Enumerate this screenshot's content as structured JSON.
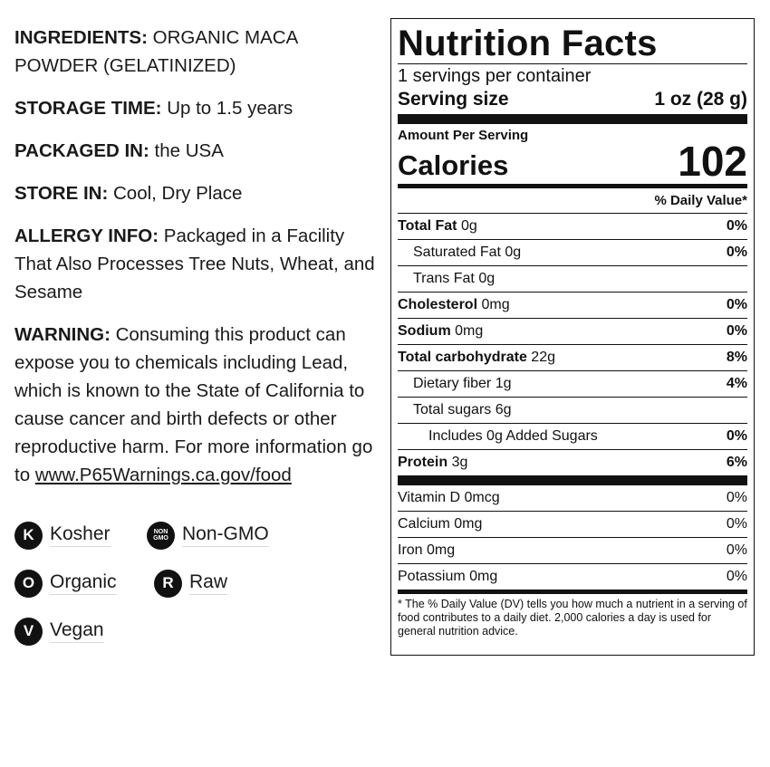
{
  "info": [
    {
      "label": "INGREDIENTS:",
      "value": "ORGANIC MACA POWDER (GELATINIZED)"
    },
    {
      "label": "STORAGE TIME:",
      "value": "Up to 1.5 years"
    },
    {
      "label": "PACKAGED IN:",
      "value": "the USA"
    },
    {
      "label": "STORE IN:",
      "value": "Cool, Dry Place"
    },
    {
      "label": "ALLERGY INFO:",
      "value": "Packaged in a Facility That Also Processes Tree Nuts, Wheat, and Sesame"
    }
  ],
  "warning": {
    "label": "WARNING:",
    "value": "Consuming this product can expose you to chemicals including Lead, which is known to the State of California to cause cancer and birth defects or other reproductive harm. For more information go to",
    "link": "www.P65Warnings.ca.gov/food"
  },
  "badges": [
    {
      "icon": "K",
      "label": "Kosher"
    },
    {
      "icon": "NON GMO",
      "label": "Non-GMO"
    },
    {
      "icon": "O",
      "label": "Organic"
    },
    {
      "icon": "R",
      "label": "Raw"
    },
    {
      "icon": "V",
      "label": "Vegan"
    }
  ],
  "nutrition": {
    "title": "Nutrition Facts",
    "servings": "1 servings per container",
    "serving_size_label": "Serving size",
    "serving_size_value": "1 oz (28 g)",
    "amount_per_serving": "Amount Per Serving",
    "calories_label": "Calories",
    "calories_value": "102",
    "dv_header": "% Daily Value*",
    "rows": [
      {
        "name": "Total Fat",
        "amount": "0g",
        "dv": "0%"
      },
      {
        "name": "Saturated Fat",
        "amount": "0g",
        "dv": "0%"
      },
      {
        "name": "Trans Fat",
        "amount": "0g",
        "dv": ""
      },
      {
        "name": "Cholesterol",
        "amount": "0mg",
        "dv": "0%"
      },
      {
        "name": "Sodium",
        "amount": "0mg",
        "dv": "0%"
      },
      {
        "name": "Total carbohydrate",
        "amount": "22g",
        "dv": "8%"
      },
      {
        "name": "Dietary fiber",
        "amount": "1g",
        "dv": "4%"
      },
      {
        "name": "Total sugars",
        "amount": "6g",
        "dv": ""
      },
      {
        "name": "Includes 0g Added Sugars",
        "amount": "",
        "dv": "0%"
      },
      {
        "name": "Protein",
        "amount": "3g",
        "dv": "6%"
      }
    ],
    "vitamins": [
      {
        "name": "Vitamin D 0mcg",
        "dv": "0%"
      },
      {
        "name": "Calcium 0mg",
        "dv": "0%"
      },
      {
        "name": "Iron 0mg",
        "dv": "0%"
      },
      {
        "name": "Potassium 0mg",
        "dv": "0%"
      }
    ],
    "footnote": "* The % Daily Value (DV) tells you how much a nutrient in a serving of food contributes to a daily diet. 2,000 calories a day is used for general nutrition advice."
  }
}
